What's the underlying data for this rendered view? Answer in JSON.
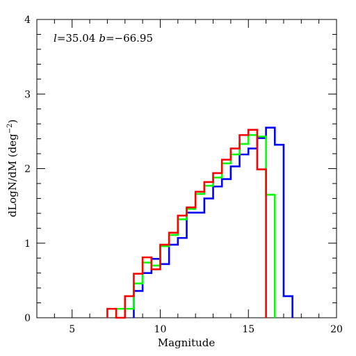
{
  "chart_data": {
    "type": "line",
    "drawstyle": "steps-histogram",
    "xlabel": "Magnitude",
    "ylabel": "dLogN/dM (deg",
    "ylabel_sup": "−2",
    "ylabel_close": ")",
    "xlim": [
      3,
      20
    ],
    "ylim": [
      0,
      4
    ],
    "xticks": [
      5,
      10,
      15,
      20
    ],
    "yticks": [
      0,
      1,
      2,
      3,
      4
    ],
    "xtick_labels": [
      "5",
      "10",
      "15",
      "20"
    ],
    "ytick_labels": [
      "0",
      "1",
      "2",
      "3",
      "4"
    ],
    "grid": false,
    "annotation": {
      "l_label": "l",
      "l_value": "=35.04",
      "b_label": "b",
      "b_value": "=−66.95"
    },
    "bin_edges": [
      7.0,
      7.5,
      8.0,
      8.5,
      9.0,
      9.5,
      10.0,
      10.5,
      11.0,
      11.5,
      12.0,
      12.5,
      13.0,
      13.5,
      14.0,
      14.5,
      15.0,
      15.5,
      16.0,
      16.5,
      17.0,
      17.5
    ],
    "series": [
      {
        "color": "#0000ff",
        "values": [
          0,
          0,
          0,
          0.36,
          0.6,
          0.79,
          0.72,
          0.98,
          1.07,
          1.41,
          1.41,
          1.6,
          1.76,
          1.86,
          2.03,
          2.19,
          2.27,
          2.41,
          2.55,
          2.32,
          0.29
        ]
      },
      {
        "color": "#00ff00",
        "values": [
          0,
          0.12,
          0.12,
          0.46,
          0.74,
          0.7,
          0.96,
          1.11,
          1.32,
          1.46,
          1.66,
          1.77,
          1.88,
          2.07,
          2.19,
          2.33,
          2.45,
          2.43,
          1.65,
          0,
          0
        ]
      },
      {
        "color": "#ff0000",
        "values": [
          0.12,
          0,
          0.29,
          0.59,
          0.81,
          0.65,
          0.98,
          1.14,
          1.37,
          1.48,
          1.69,
          1.82,
          1.94,
          2.12,
          2.27,
          2.45,
          2.52,
          1.99,
          0,
          0,
          0
        ]
      }
    ]
  }
}
